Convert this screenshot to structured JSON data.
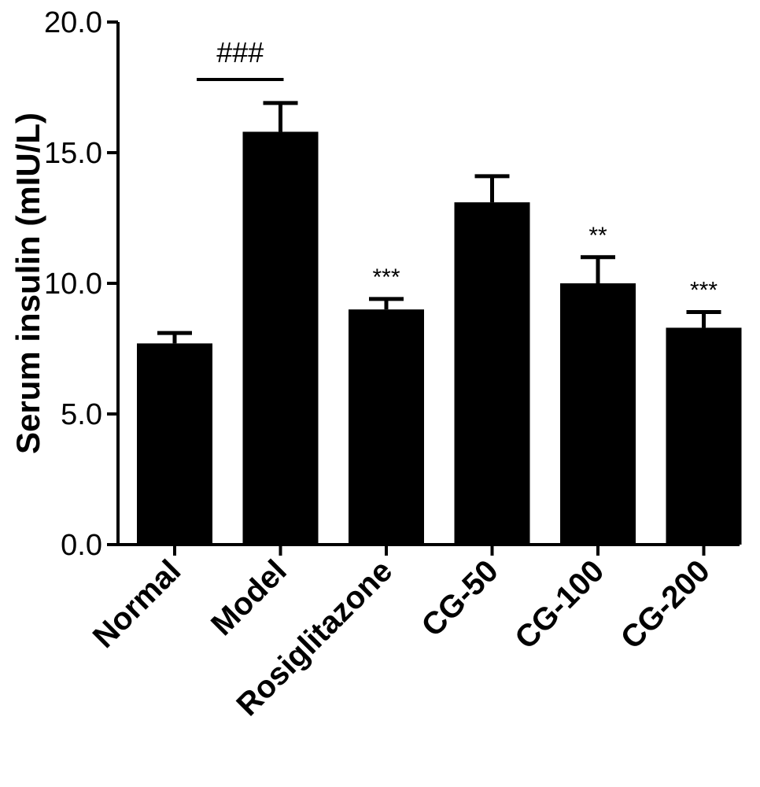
{
  "chart_data": {
    "type": "bar",
    "ylabel": "Serum insulin (mIU/L)",
    "ylim": [
      0,
      20
    ],
    "yticks": [
      "0.0",
      "5.0",
      "10.0",
      "15.0",
      "20.0"
    ],
    "ytick_values": [
      0,
      5,
      10,
      15,
      20
    ],
    "categories": [
      "Normal",
      "Model",
      "Rosiglitazone",
      "CG-50",
      "CG-100",
      "CG-200"
    ],
    "values": [
      7.7,
      15.8,
      9.0,
      13.1,
      10.0,
      8.3
    ],
    "errors": [
      0.4,
      1.1,
      0.4,
      1.0,
      1.0,
      0.6
    ],
    "significance": [
      "",
      "",
      "***",
      "",
      "**",
      "***"
    ],
    "model_comparison": {
      "label": "###",
      "from": "Normal",
      "to": "Model",
      "line_value": 17.8
    },
    "bar_color": "#000000",
    "grid": false,
    "legend": "none"
  }
}
